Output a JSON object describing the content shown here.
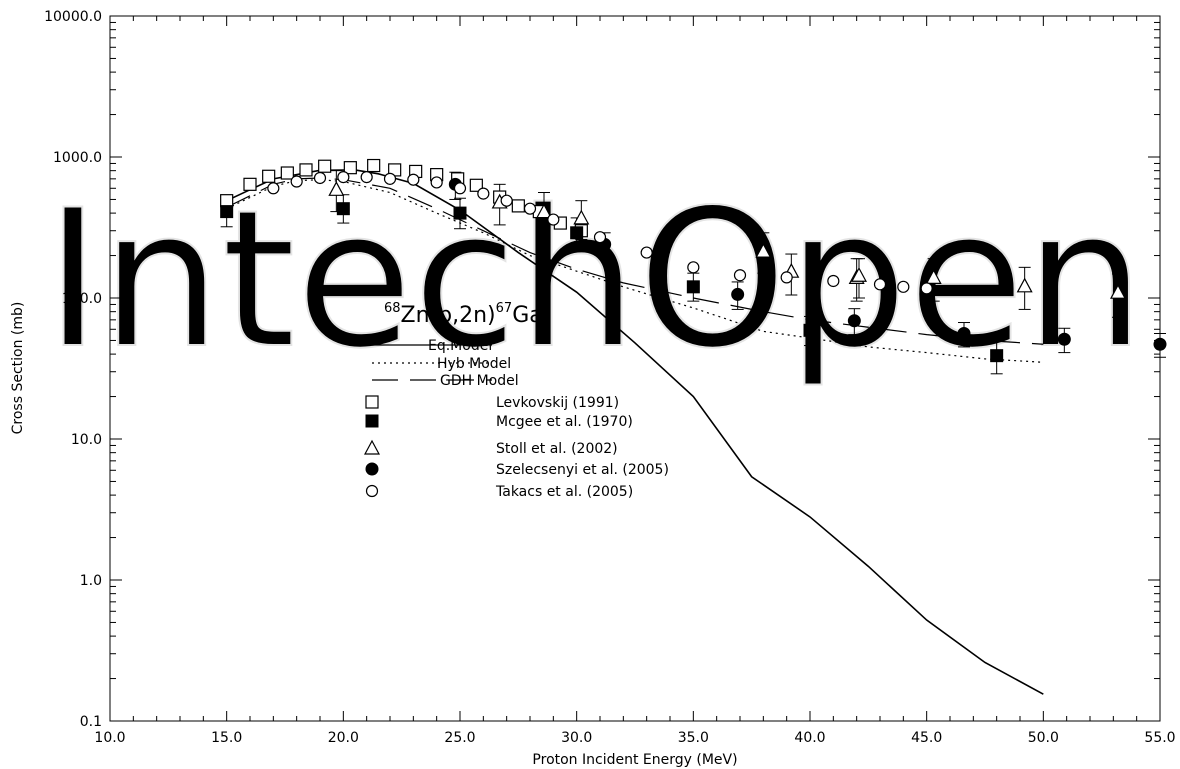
{
  "watermark": "IntechOpen",
  "chart_data": {
    "type": "scatter",
    "title": {
      "mass_a": "68",
      "body_a": "Zn(p,2n)",
      "mass_b": "67",
      "body_b": "Ga"
    },
    "xlabel": "Proton Incident Energy (MeV)",
    "ylabel": "Cross Section (mb)",
    "xlim": [
      10,
      55
    ],
    "ylim": [
      0.1,
      10000
    ],
    "yscale": "log",
    "grid": false,
    "legend_position": "center",
    "x_ticks": [
      "10.0",
      "15.0",
      "20.0",
      "25.0",
      "30.0",
      "35.0",
      "40.0",
      "45.0",
      "50.0",
      "55.0"
    ],
    "y_ticks": [
      "0.1",
      "1.0",
      "10.0",
      "100.0",
      "1000.0",
      "10000.0"
    ],
    "series": [
      {
        "name": "Eq.Model",
        "kind": "line",
        "dash": "solid",
        "x": [
          15,
          17,
          19,
          20.5,
          21.5,
          23,
          25,
          27.5,
          30,
          32.5,
          35,
          37.5,
          40,
          42.5,
          45,
          47.5,
          50
        ],
        "y": [
          490,
          700,
          805,
          810,
          760,
          650,
          420,
          210,
          110,
          48,
          20,
          5.4,
          2.8,
          1.25,
          0.52,
          0.26,
          0.155
        ]
      },
      {
        "name": "Hyb Model",
        "kind": "line",
        "dash": "dotted",
        "x": [
          15,
          17,
          18,
          19,
          20,
          22,
          24,
          26,
          28,
          30,
          32,
          35,
          38,
          40,
          42.5,
          45,
          47.5,
          50
        ],
        "y": [
          430,
          620,
          680,
          690,
          670,
          560,
          400,
          290,
          200,
          155,
          120,
          85,
          58,
          52,
          45,
          41,
          37,
          35
        ]
      },
      {
        "name": "GDH Model",
        "kind": "line",
        "dash": "dashed",
        "x": [
          15,
          17,
          18,
          19,
          20,
          22,
          24,
          26,
          28,
          30,
          32,
          35,
          38,
          40,
          42.5,
          45,
          47.5,
          50
        ],
        "y": [
          440,
          640,
          700,
          710,
          690,
          600,
          430,
          300,
          210,
          160,
          128,
          100,
          80,
          70,
          62,
          55,
          50,
          47
        ]
      },
      {
        "name": "Levkovskij  (1991)",
        "kind": "points",
        "marker": "open-square",
        "x": [
          15,
          16,
          16.8,
          17.6,
          18.4,
          19.2,
          20.3,
          21.3,
          22.2,
          23.1,
          24,
          24.9,
          25.7,
          26.7,
          27.5,
          28.4,
          29.3,
          30.2
        ],
        "y": [
          490,
          640,
          730,
          770,
          810,
          860,
          840,
          870,
          810,
          790,
          750,
          700,
          630,
          520,
          450,
          410,
          340,
          300
        ]
      },
      {
        "name": "Mcgee et al. (1970)",
        "kind": "points",
        "marker": "filled-square",
        "x": [
          15,
          20,
          25,
          30,
          35,
          40,
          48
        ],
        "y": [
          410,
          430,
          400,
          290,
          120,
          59,
          39
        ],
        "err": [
          [
            320,
            530
          ],
          [
            340,
            540
          ],
          [
            310,
            510
          ],
          [
            230,
            370
          ],
          [
            95,
            150
          ],
          [
            46,
            74
          ],
          [
            29,
            50
          ]
        ]
      },
      {
        "name": "Stoll et al. (2002)",
        "kind": "points",
        "marker": "open-triangle",
        "x": [
          19.7,
          26.7,
          28.6,
          30.2,
          38,
          39.2,
          42,
          42.1,
          45.3,
          49.2,
          53.2
        ],
        "y": [
          590,
          480,
          410,
          370,
          215,
          155,
          140,
          145,
          140,
          122,
          110
        ],
        "err": [
          [
            410,
            800
          ],
          [
            330,
            640
          ],
          [
            280,
            560
          ],
          [
            260,
            490
          ],
          [
            150,
            290
          ],
          [
            105,
            205
          ],
          [
            95,
            190
          ],
          [
            100,
            190
          ],
          [
            95,
            190
          ],
          [
            83,
            165
          ],
          [
            73,
            148
          ]
        ]
      },
      {
        "name": "Szelecsenyi et al. (2005)",
        "kind": "points",
        "marker": "filled-circle",
        "x": [
          24.8,
          31.2,
          36.9,
          41.9,
          46.6,
          50.9,
          55
        ],
        "y": [
          640,
          240,
          106,
          69,
          56,
          51,
          47
        ],
        "err": [
          [
            500,
            780
          ],
          [
            190,
            290
          ],
          [
            83,
            130
          ],
          [
            55,
            84
          ],
          [
            45,
            67
          ],
          [
            41,
            61
          ],
          [
            38,
            56
          ]
        ]
      },
      {
        "name": "Takacs et al. (2005)",
        "kind": "points",
        "marker": "open-circle",
        "x": [
          17,
          18,
          19,
          20,
          21,
          22,
          23,
          24,
          25,
          26,
          27,
          28,
          29,
          31,
          33,
          35,
          37,
          39,
          41,
          43,
          44,
          45
        ],
        "y": [
          600,
          670,
          710,
          720,
          720,
          700,
          690,
          660,
          600,
          550,
          490,
          430,
          360,
          270,
          210,
          165,
          145,
          140,
          132,
          125,
          120,
          117
        ]
      }
    ]
  }
}
